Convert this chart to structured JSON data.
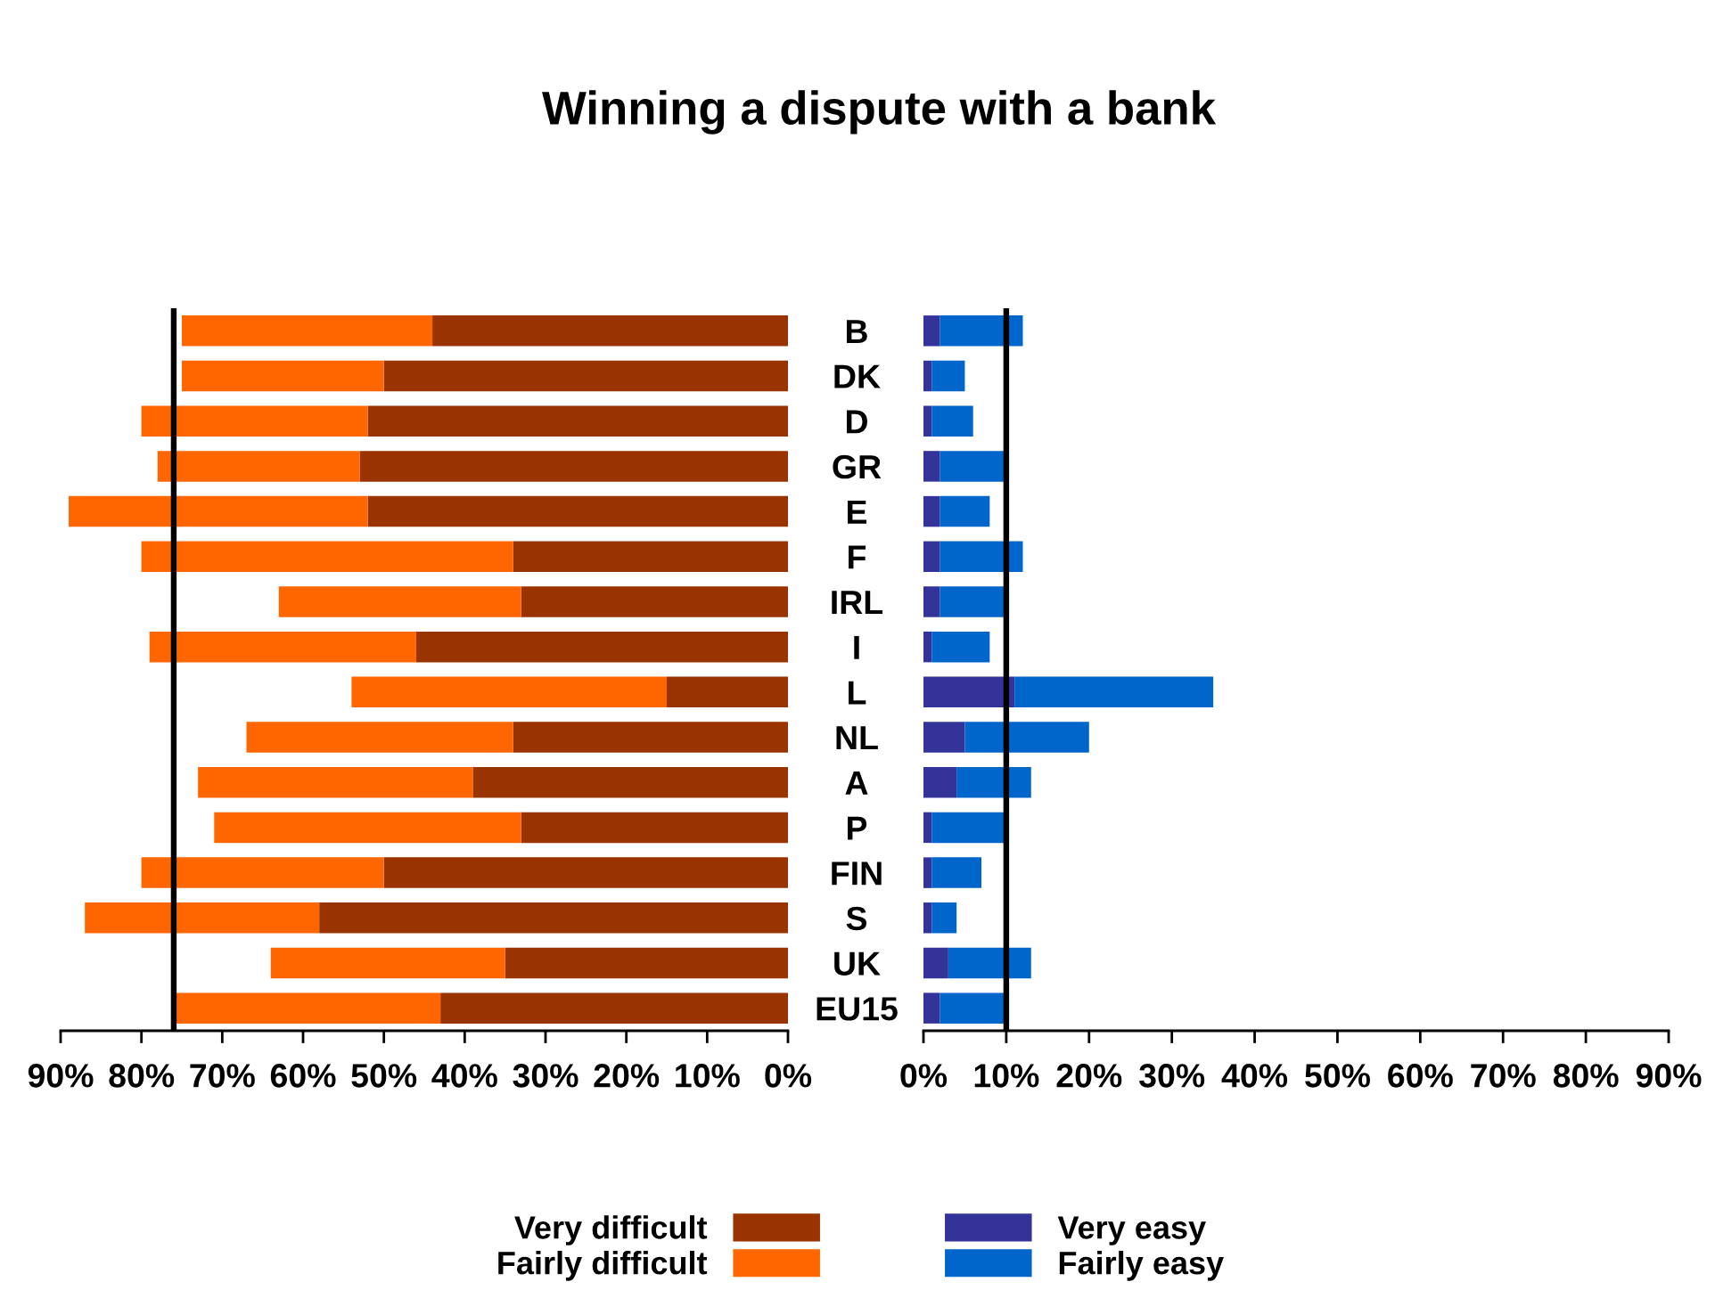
{
  "chart_data": [
    {
      "type": "bar",
      "title": "Winning a dispute with a bank",
      "orientation": "horizontal",
      "stacked": true,
      "categories": [
        null,
        null,
        null,
        null,
        null,
        null,
        null,
        null,
        null,
        null,
        null,
        null,
        null,
        null,
        null,
        null
      ],
      "series": [
        {
          "name": "Very difficult",
          "color": "#993300",
          "values": [
            44,
            50,
            52,
            53,
            52,
            34,
            33,
            46,
            15,
            34,
            39,
            33,
            50,
            58,
            35,
            43
          ]
        },
        {
          "name": "Fairly difficult",
          "color": "#ff6600",
          "values": [
            31,
            25,
            28,
            25,
            37,
            46,
            30,
            33,
            39,
            33,
            34,
            38,
            30,
            29,
            29,
            33
          ]
        }
      ],
      "xlim": [
        90,
        0
      ],
      "xticks": [
        {
          "value": 0,
          "label": "0%"
        },
        {
          "value": 10,
          "label": "10%"
        },
        {
          "value": 20,
          "label": "20%"
        },
        {
          "value": 30,
          "label": "30%"
        },
        {
          "value": 40,
          "label": "40%"
        },
        {
          "value": 50,
          "label": "50%"
        },
        {
          "value": 60,
          "label": "60%"
        },
        {
          "value": 70,
          "label": "70%"
        },
        {
          "value": 80,
          "label": "80%"
        },
        {
          "value": 90,
          "label": "90%"
        }
      ],
      "ref_lines": [
        {
          "axis": "x",
          "value": 76,
          "color": "#000000"
        }
      ],
      "legend": "bottom"
    },
    {
      "type": "bar",
      "orientation": "horizontal",
      "stacked": true,
      "categories": [
        "B",
        "DK",
        "D",
        "GR",
        "E",
        "F",
        "IRL",
        "I",
        "L",
        "NL",
        "A",
        "P",
        "FIN",
        "S",
        "UK",
        "EU15"
      ],
      "series": [
        {
          "name": "Very easy",
          "color": "#333399",
          "values": [
            2,
            1,
            1,
            2,
            2,
            2,
            2,
            1,
            11,
            5,
            4,
            1,
            1,
            1,
            3,
            2
          ]
        },
        {
          "name": "Fairly easy",
          "color": "#0066cc",
          "values": [
            10,
            4,
            5,
            8,
            6,
            10,
            8,
            7,
            24,
            15,
            9,
            9,
            6,
            3,
            10,
            8
          ]
        }
      ],
      "xlim": [
        0,
        90
      ],
      "xticks": [
        {
          "value": 0,
          "label": "0%"
        },
        {
          "value": 10,
          "label": "10%"
        },
        {
          "value": 20,
          "label": "20%"
        },
        {
          "value": 30,
          "label": "30%"
        },
        {
          "value": 40,
          "label": "40%"
        },
        {
          "value": 50,
          "label": "50%"
        },
        {
          "value": 60,
          "label": "60%"
        },
        {
          "value": 70,
          "label": "70%"
        },
        {
          "value": 80,
          "label": "80%"
        },
        {
          "value": 90,
          "label": "90%"
        }
      ],
      "ref_lines": [
        {
          "axis": "x",
          "value": 10,
          "color": "#000000"
        }
      ],
      "legend": "bottom"
    }
  ]
}
